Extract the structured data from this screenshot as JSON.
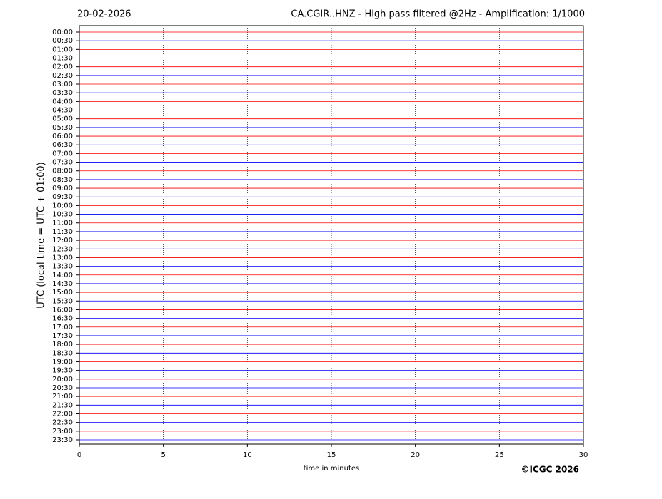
{
  "chart_data": {
    "type": "helicorder",
    "date": "20-02-2026",
    "title": "CA.CGIR..HNZ - High pass filtered @2Hz - Amplification: 1/1000",
    "y_label": "UTC (local time = UTC + 01:00)",
    "x_label": "time in minutes",
    "copyright": "©ICGC 2026",
    "categories": [
      "00:00",
      "00:30",
      "01:00",
      "01:30",
      "02:00",
      "02:30",
      "03:00",
      "03:30",
      "04:00",
      "04:30",
      "05:00",
      "05:30",
      "06:00",
      "06:30",
      "07:00",
      "07:30",
      "08:00",
      "08:30",
      "09:00",
      "09:30",
      "10:00",
      "10:30",
      "11:00",
      "11:30",
      "12:00",
      "12:30",
      "13:00",
      "13:30",
      "14:00",
      "14:30",
      "15:00",
      "15:30",
      "16:00",
      "16:30",
      "17:00",
      "17:30",
      "18:00",
      "18:30",
      "19:00",
      "19:30",
      "20:00",
      "20:30",
      "21:00",
      "21:30",
      "22:00",
      "22:30",
      "23:00",
      "23:30"
    ],
    "trace_colors": [
      "#ff0000",
      "#0000ff"
    ],
    "xlim": [
      0,
      30
    ],
    "xticks": [
      0,
      5,
      10,
      15,
      20,
      25,
      30
    ],
    "grid": true
  }
}
